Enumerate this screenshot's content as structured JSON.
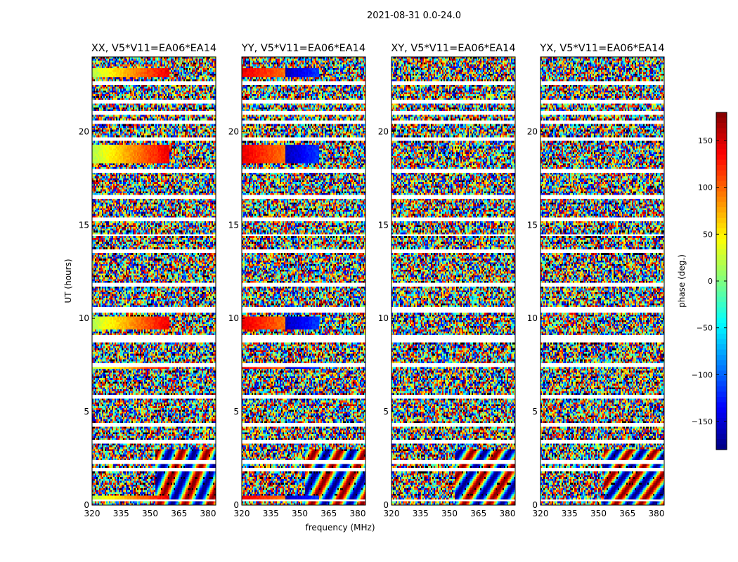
{
  "suptitle": "2021-08-31 0.0-24.0",
  "chart_data": {
    "type": "heatmap",
    "xlabel": "frequency (MHz)",
    "ylabel": "UT (hours)",
    "xlim": [
      320,
      384
    ],
    "ylim": [
      0,
      24
    ],
    "xticks": [
      320,
      335,
      350,
      365,
      380
    ],
    "yticks": [
      0,
      5,
      10,
      15,
      20
    ],
    "panels": [
      {
        "title": "XX, V5*V11=EA06*EA14",
        "product": "XX",
        "coherent_bands": true
      },
      {
        "title": "YY, V5*V11=EA06*EA14",
        "product": "YY",
        "coherent_bands": true
      },
      {
        "title": "XY, V5*V11=EA06*EA14",
        "product": "XY",
        "coherent_bands": false
      },
      {
        "title": "YX, V5*V11=EA06*EA14",
        "product": "YX",
        "coherent_bands": false
      }
    ],
    "colorbar": {
      "label": "phase (deg.)",
      "range": [
        -180,
        180
      ],
      "ticks": [
        150,
        100,
        50,
        0,
        -50,
        -100,
        -150
      ],
      "tick_labels": [
        "150",
        "100",
        "50",
        "0",
        "−50",
        "−100",
        "−150"
      ],
      "colormap": "jet"
    },
    "gaps_hours": [
      0.25,
      1.9,
      2.3,
      3.4,
      4.3,
      5.8,
      7.5,
      8.8,
      9.0,
      10.35,
      10.5,
      11.8,
      13.6,
      14.45,
      15.3,
      16.5,
      17.9,
      19.6,
      20.5,
      21.0,
      21.6,
      22.6
    ],
    "coherent_rows_hours": [
      {
        "from": 18.3,
        "to": 19.3
      },
      {
        "from": 22.9,
        "to": 23.4
      },
      {
        "from": 9.35,
        "to": 10.05
      },
      {
        "from": 7.3,
        "to": 7.45
      },
      {
        "from": 0.3,
        "to": 0.55
      }
    ]
  }
}
